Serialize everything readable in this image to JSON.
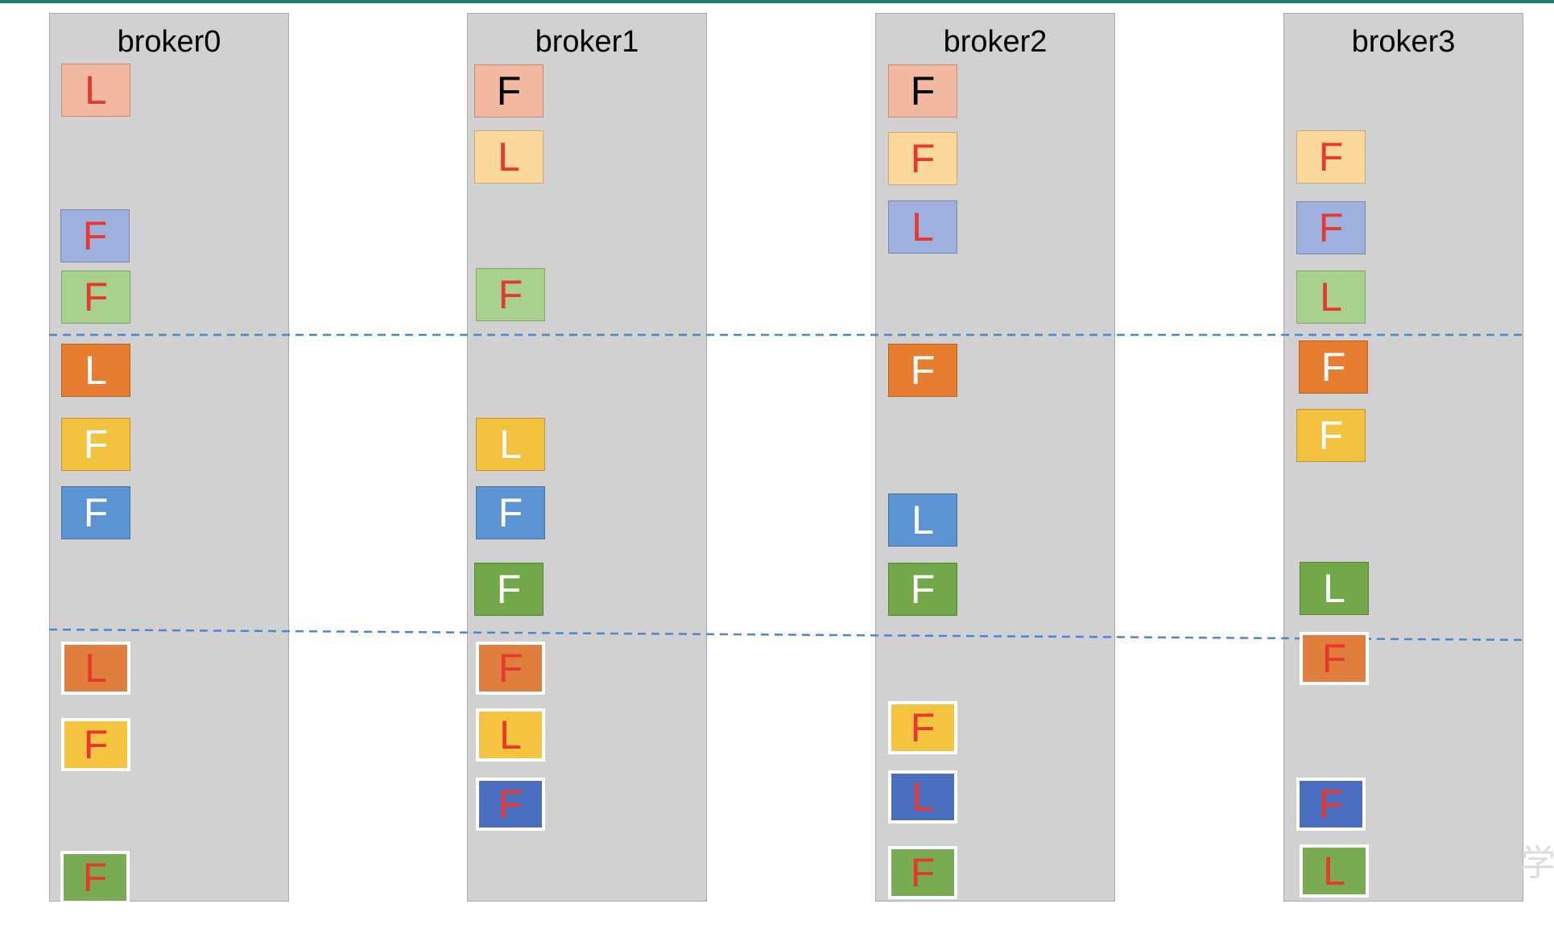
{
  "brokers": [
    {
      "name": "broker0",
      "replicas": [
        {
          "role": "L",
          "color": "#f2b8a0",
          "text": "#e8382d",
          "white_border": false
        },
        {
          "role": "F",
          "color": "#9eb0de",
          "text": "#e8382d",
          "white_border": false
        },
        {
          "role": "F",
          "color": "#a9d18e",
          "text": "#e8382d",
          "white_border": false
        },
        {
          "role": "L",
          "color": "#e77d2f",
          "text": "#ffffff",
          "white_border": false
        },
        {
          "role": "F",
          "color": "#f3c140",
          "text": "#ffffff",
          "white_border": false
        },
        {
          "role": "F",
          "color": "#5b93d3",
          "text": "#ffffff",
          "white_border": false
        },
        {
          "role": "L",
          "color": "#e07e3d",
          "text": "#e8382d",
          "white_border": true
        },
        {
          "role": "F",
          "color": "#f4c33f",
          "text": "#e8382d",
          "white_border": true
        },
        {
          "role": "F",
          "color": "#78ab52",
          "text": "#e8382d",
          "white_border": true
        }
      ]
    },
    {
      "name": "broker1",
      "replicas": [
        {
          "role": "F",
          "color": "#f2b8a0",
          "text": "#000000",
          "white_border": false
        },
        {
          "role": "L",
          "color": "#fcd99a",
          "text": "#e8382d",
          "white_border": false
        },
        {
          "role": "F",
          "color": "#a9d18e",
          "text": "#e8382d",
          "white_border": false
        },
        {
          "role": "L",
          "color": "#f3c140",
          "text": "#ffffff",
          "white_border": false
        },
        {
          "role": "F",
          "color": "#5b93d3",
          "text": "#ffffff",
          "white_border": false
        },
        {
          "role": "F",
          "color": "#72a84a",
          "text": "#ffffff",
          "white_border": false
        },
        {
          "role": "F",
          "color": "#e07e3d",
          "text": "#e8382d",
          "white_border": true
        },
        {
          "role": "L",
          "color": "#f4c33f",
          "text": "#e8382d",
          "white_border": true
        },
        {
          "role": "F",
          "color": "#4a6fc0",
          "text": "#e8382d",
          "white_border": true
        }
      ]
    },
    {
      "name": "broker2",
      "replicas": [
        {
          "role": "F",
          "color": "#f2b8a0",
          "text": "#000000",
          "white_border": false
        },
        {
          "role": "F",
          "color": "#fcd99a",
          "text": "#e8382d",
          "white_border": false
        },
        {
          "role": "L",
          "color": "#9eb0de",
          "text": "#e8382d",
          "white_border": false
        },
        {
          "role": "F",
          "color": "#e77d2f",
          "text": "#ffffff",
          "white_border": false
        },
        {
          "role": "L",
          "color": "#5b93d3",
          "text": "#ffffff",
          "white_border": false
        },
        {
          "role": "F",
          "color": "#72a84a",
          "text": "#ffffff",
          "white_border": false
        },
        {
          "role": "F",
          "color": "#f4c33f",
          "text": "#e8382d",
          "white_border": true
        },
        {
          "role": "L",
          "color": "#4a6fc0",
          "text": "#e8382d",
          "white_border": true
        },
        {
          "role": "F",
          "color": "#78ab52",
          "text": "#e8382d",
          "white_border": true
        }
      ]
    },
    {
      "name": "broker3",
      "replicas": [
        {
          "role": "F",
          "color": "#fcd99a",
          "text": "#e8382d",
          "white_border": false
        },
        {
          "role": "F",
          "color": "#9eb0de",
          "text": "#e8382d",
          "white_border": false
        },
        {
          "role": "L",
          "color": "#a9d18e",
          "text": "#e8382d",
          "white_border": false
        },
        {
          "role": "F",
          "color": "#e77d2f",
          "text": "#ffffff",
          "white_border": false
        },
        {
          "role": "F",
          "color": "#f3c140",
          "text": "#ffffff",
          "white_border": false
        },
        {
          "role": "L",
          "color": "#72a84a",
          "text": "#ffffff",
          "white_border": false
        },
        {
          "role": "F",
          "color": "#e07e3d",
          "text": "#e8382d",
          "white_border": true
        },
        {
          "role": "F",
          "color": "#4a6fc0",
          "text": "#e8382d",
          "white_border": true
        },
        {
          "role": "L",
          "color": "#78ab52",
          "text": "#e8382d",
          "white_border": true
        }
      ]
    }
  ],
  "colors": {
    "column": "#d1d1d1",
    "divider": "#4a86d6",
    "topbar": "#1e7a6a"
  },
  "watermark": "学"
}
